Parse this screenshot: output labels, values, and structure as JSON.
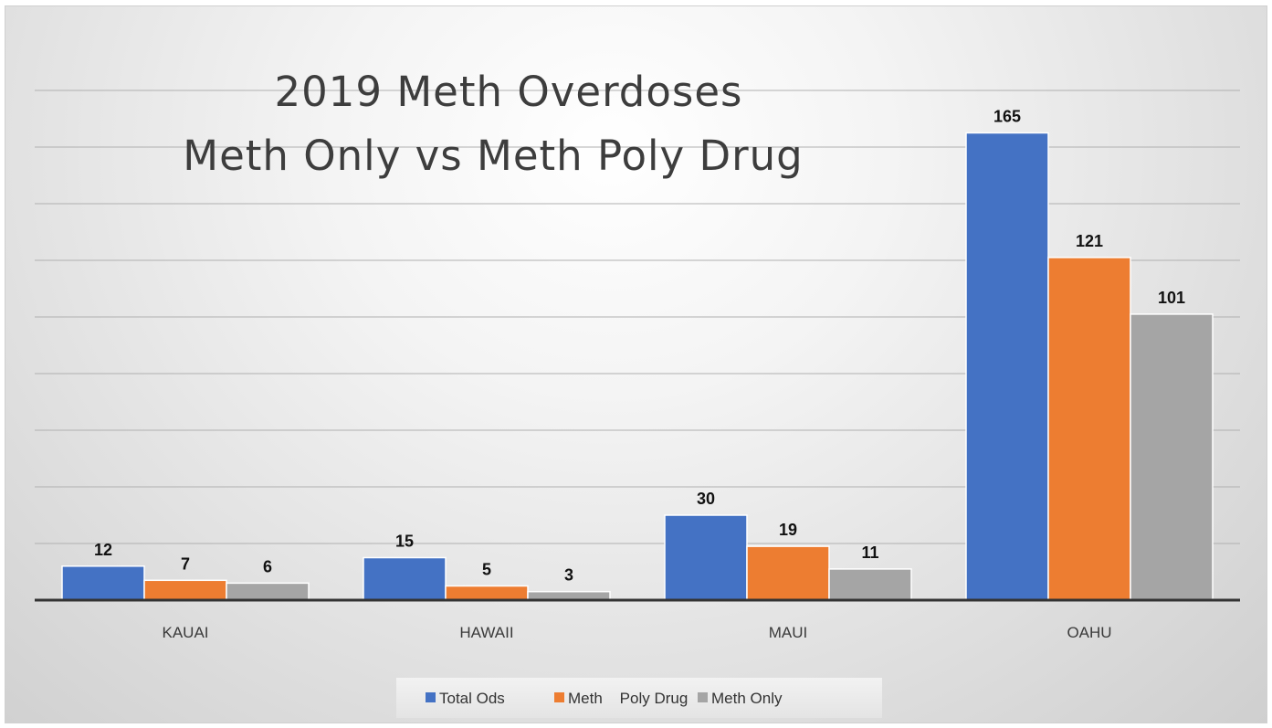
{
  "chart_data": {
    "type": "bar",
    "title": "2019 Meth Overdoses",
    "subtitle": "Meth Only vs Meth Poly Drug",
    "xlabel": "",
    "ylabel": "",
    "ylim": [
      0,
      180
    ],
    "gridlines": true,
    "legend_position": "bottom",
    "categories": [
      "KAUAI",
      "HAWAII",
      "MAUI",
      "OAHU"
    ],
    "series": [
      {
        "name": "Total Ods",
        "color": "#4472c4",
        "values": [
          12,
          15,
          30,
          165
        ]
      },
      {
        "name": "Meth    Poly Drug",
        "color": "#ed7d31",
        "values": [
          7,
          5,
          19,
          121
        ]
      },
      {
        "name": "Meth Only",
        "color": "#a5a5a5",
        "values": [
          6,
          3,
          11,
          101
        ]
      }
    ]
  }
}
